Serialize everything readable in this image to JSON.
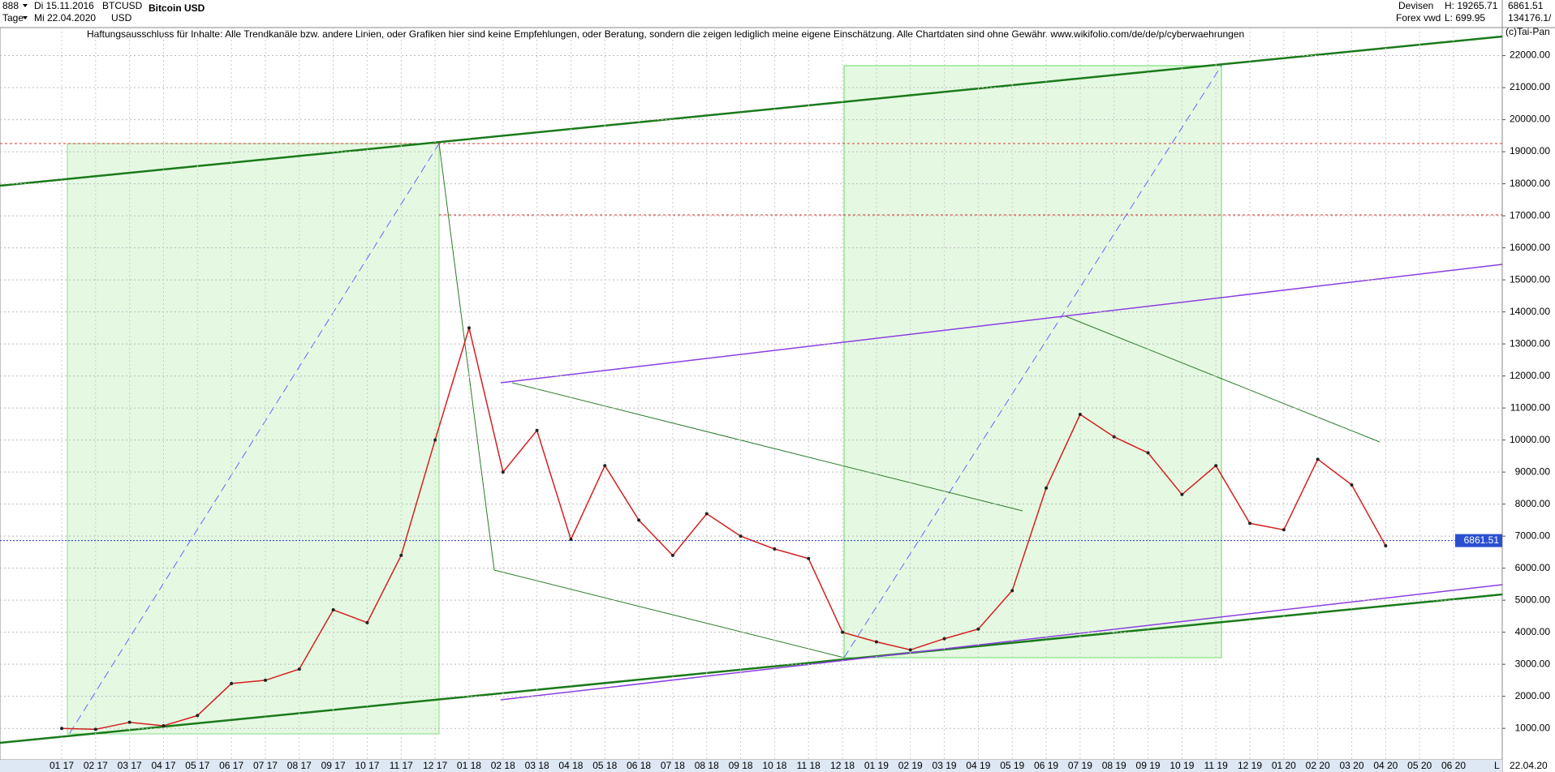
{
  "header": {
    "menu": "888",
    "start_date": "Di 15.11.2016",
    "symbol": "BTCUSD",
    "title": "Bitcoin USD",
    "period": "Tage",
    "end_date": "Mi 22.04.2020",
    "currency": "USD",
    "market": "Devisen",
    "source": "Forex vwd",
    "high": "H: 19265.71",
    "low": "L: 699.95",
    "last": "6861.51",
    "volume": "134176.1/",
    "disclaimer": "Haftungsausschluss für Inhalte: Alle Trendkanäle bzw. andere Linien, oder Grafiken hier sind keine Empfehlungen, oder Beratung, sondern die zeigen lediglich meine eigene Einschätzung. Alle Chartdaten sind ohne Gewähr.  www.wikifolio.com/de/de/p/cyberwaehrungen",
    "copyright": "(c)Tai-Pan",
    "axis_date": "22.04.20",
    "scale_mode": "L"
  },
  "chart_data": {
    "type": "line",
    "title": "Bitcoin USD",
    "categories": [
      "01 17",
      "02 17",
      "03 17",
      "04 17",
      "05 17",
      "06 17",
      "07 17",
      "08 17",
      "09 17",
      "10 17",
      "11 17",
      "12 17",
      "01 18",
      "02 18",
      "03 18",
      "04 18",
      "05 18",
      "06 18",
      "07 18",
      "08 18",
      "09 18",
      "10 18",
      "11 18",
      "12 18",
      "01 19",
      "02 19",
      "03 19",
      "04 19",
      "05 19",
      "06 19",
      "07 19",
      "08 19",
      "09 19",
      "10 19",
      "11 19",
      "12 19",
      "01 20",
      "02 20",
      "03 20",
      "04 20",
      "05 20",
      "06 20"
    ],
    "values": [
      1000,
      970,
      1190,
      1080,
      1400,
      2400,
      2500,
      2850,
      4700,
      4300,
      6400,
      10000,
      13500,
      9000,
      10300,
      6900,
      9200,
      7500,
      6400,
      7700,
      7000,
      6600,
      6300,
      4000,
      3700,
      3450,
      3800,
      4100,
      5300,
      8500,
      10800,
      10100,
      9600,
      8300,
      9200,
      7400,
      7200,
      9400,
      8600,
      6700,
      null,
      null
    ],
    "color": "#d42020",
    "last_price": {
      "value": 6861.51,
      "label": "6861.51"
    },
    "ylim": [
      0,
      22500
    ],
    "yticks": [
      {
        "value": 1000,
        "label": "1000.00"
      },
      {
        "value": 2000,
        "label": "2000.00"
      },
      {
        "value": 3000,
        "label": "3000.00"
      },
      {
        "value": 4000,
        "label": "4000.00"
      },
      {
        "value": 5000,
        "label": "5000.00"
      },
      {
        "value": 6000,
        "label": "6000.00"
      },
      {
        "value": 7000,
        "label": "7000.00"
      },
      {
        "value": 8000,
        "label": "8000.00"
      },
      {
        "value": 9000,
        "label": "9000.00"
      },
      {
        "value": 10000,
        "label": "10000.00"
      },
      {
        "value": 11000,
        "label": "11000.00"
      },
      {
        "value": 12000,
        "label": "12000.00"
      },
      {
        "value": 13000,
        "label": "13000.00"
      },
      {
        "value": 14000,
        "label": "14000.00"
      },
      {
        "value": 15000,
        "label": "15000.00"
      },
      {
        "value": 16000,
        "label": "16000.00"
      },
      {
        "value": 17000,
        "label": "17000.00"
      },
      {
        "value": 18000,
        "label": "18000.00"
      },
      {
        "value": 19000,
        "label": "19000.00"
      },
      {
        "value": 20000,
        "label": "20000.00"
      },
      {
        "value": 21000,
        "label": "21000.00"
      },
      {
        "value": 22000,
        "label": "22000.00"
      }
    ],
    "grid": true
  }
}
